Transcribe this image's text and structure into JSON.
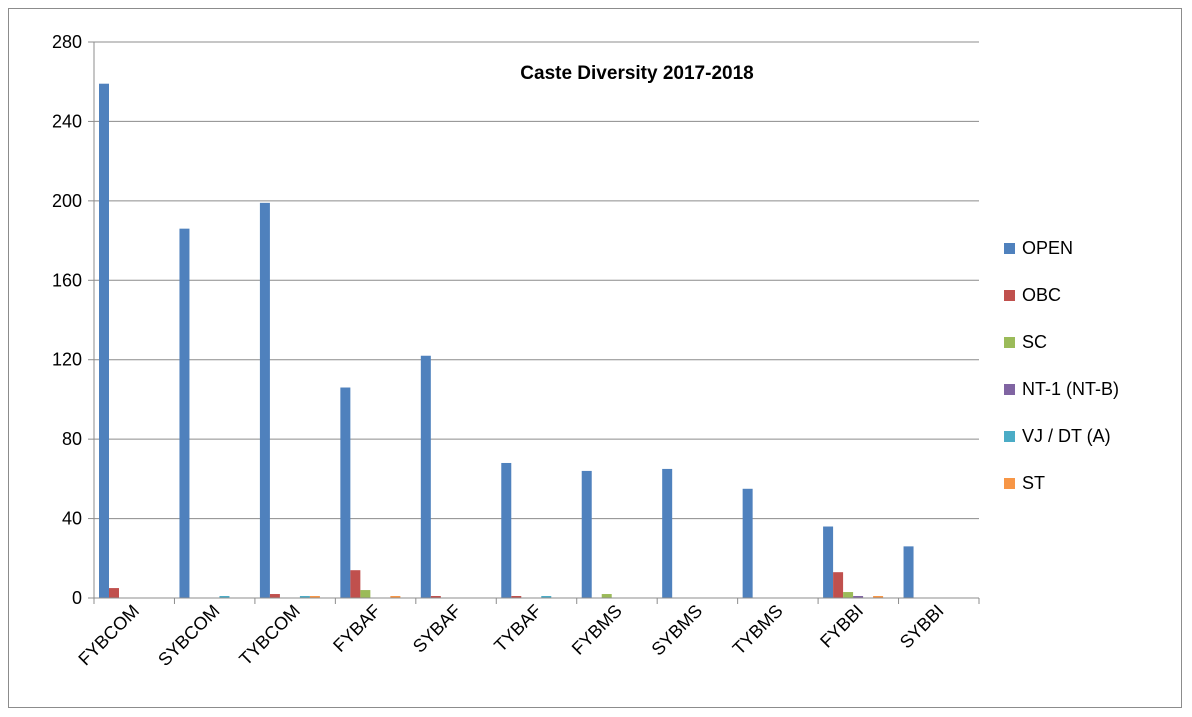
{
  "chart_data": {
    "type": "bar",
    "title": "Caste Diversity 2017-2018",
    "xlabel": "",
    "ylabel": "",
    "ylim": [
      0,
      280
    ],
    "yticks": [
      0,
      40,
      80,
      120,
      160,
      200,
      240,
      280
    ],
    "grid": true,
    "legend_position": "right",
    "categories": [
      "FYBCOM",
      "SYBCOM",
      "TYBCOM",
      "FYBAF",
      "SYBAF",
      "TYBAF",
      "FYBMS",
      "SYBMS",
      "TYBMS",
      "FYBBI",
      "SYBBI"
    ],
    "series": [
      {
        "name": "OPEN",
        "color": "#4f81bd",
        "values": [
          259,
          186,
          199,
          106,
          122,
          68,
          64,
          65,
          55,
          36,
          26
        ]
      },
      {
        "name": "OBC",
        "color": "#c0504d",
        "values": [
          5,
          0,
          2,
          14,
          1,
          1,
          0,
          0,
          0,
          13,
          0
        ]
      },
      {
        "name": "SC",
        "color": "#9bbb59",
        "values": [
          0,
          0,
          0,
          4,
          0,
          0,
          2,
          0,
          0,
          3,
          0
        ]
      },
      {
        "name": "NT-1 (NT-B)",
        "color": "#8064a2",
        "values": [
          0,
          0,
          0,
          0,
          0,
          0,
          0,
          0,
          0,
          1,
          0
        ]
      },
      {
        "name": "VJ / DT (A)",
        "color": "#4bacc6",
        "values": [
          0,
          1,
          1,
          0,
          0,
          1,
          0,
          0,
          0,
          0,
          0
        ]
      },
      {
        "name": "ST",
        "color": "#f79646",
        "values": [
          0,
          0,
          1,
          1,
          0,
          0,
          0,
          0,
          0,
          1,
          0
        ]
      }
    ]
  }
}
